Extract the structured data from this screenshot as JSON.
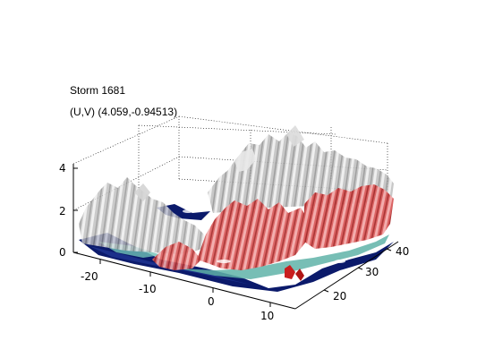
{
  "title": {
    "line1": "Storm 1681",
    "line2": "(U,V) (4.059,-0.94513)"
  },
  "axes": {
    "z_ticks": [
      "0",
      "2",
      "4"
    ],
    "x_ticks": [
      "-20",
      "-10",
      "0",
      "10"
    ],
    "y_ticks": [
      "20",
      "30",
      "40"
    ]
  },
  "colors": {
    "background": "#ffffff",
    "axis": "#000000",
    "surface_gray": "#c8c8c8",
    "surface_red": "#d24a4a",
    "surface_teal": "#5fb3a8",
    "surface_navy": "#0b1a6b"
  }
}
